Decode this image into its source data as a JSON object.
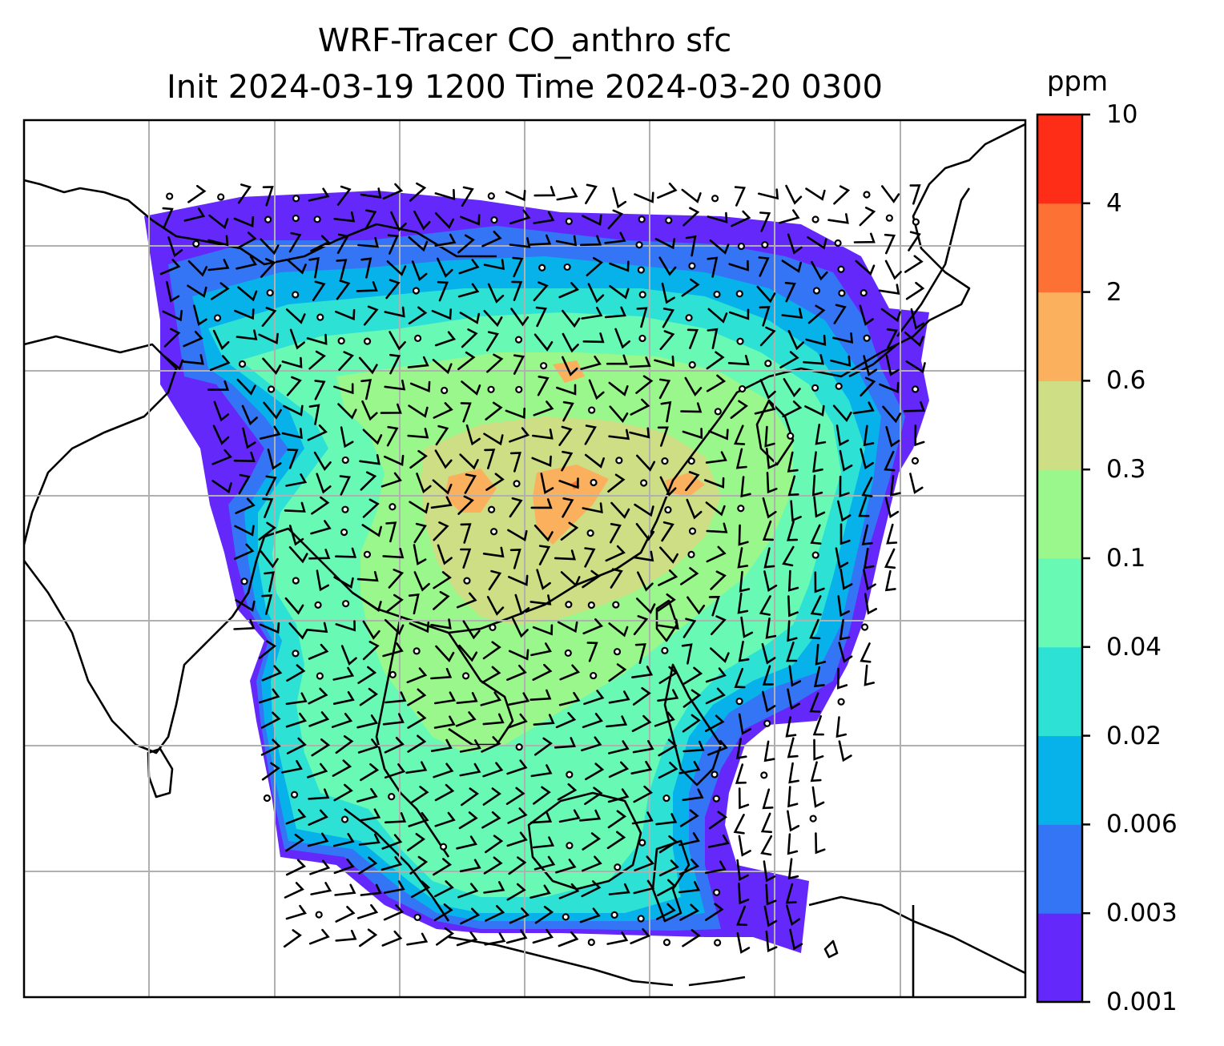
{
  "title": {
    "line1": "WRF-Tracer CO_anthro sfc",
    "line2": "Init 2024-03-19 1200 Time 2024-03-20 0300"
  },
  "colorbar": {
    "unit": "ppm",
    "ticks": [
      "0.001",
      "0.003",
      "0.006",
      "0.02",
      "0.04",
      "0.1",
      "0.3",
      "0.6",
      "2",
      "4",
      "10"
    ],
    "colors": [
      "#6528fb",
      "#3375f5",
      "#07b1e9",
      "#2ee1d5",
      "#68f9b5",
      "#9af78b",
      "#cede85",
      "#fbb05e",
      "#fe7135",
      "#fd2d17"
    ]
  },
  "map": {
    "field": "CO_anthro",
    "level": "sfc",
    "overlay": "wind barbs",
    "gridlines": true,
    "coastline_color": "#000000",
    "gridline_color": "#b0b0b0"
  }
}
